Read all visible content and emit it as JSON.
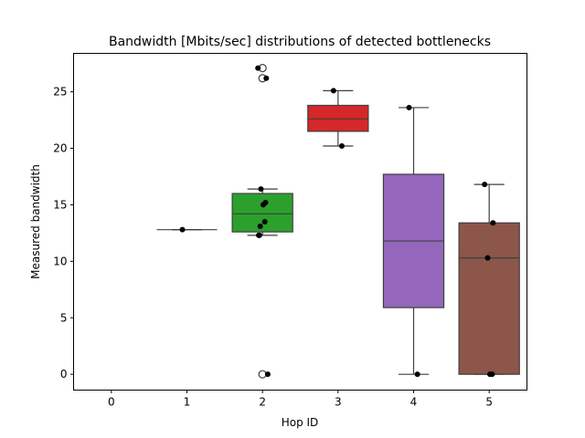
{
  "chart_data": {
    "type": "box",
    "title": "Bandwidth [Mbits/sec] distributions of detected bottlenecks",
    "xlabel": "Hop ID",
    "ylabel": "Measured bandwidth",
    "categories": [
      "0",
      "1",
      "2",
      "3",
      "4",
      "5"
    ],
    "ylim": [
      -1.4,
      28.4
    ],
    "yticks": [
      0,
      5,
      10,
      15,
      20,
      25
    ],
    "grid": false,
    "boxes": [
      {
        "category": "1",
        "color": "#ff7f0e",
        "q1": 12.8,
        "median": 12.8,
        "q3": 12.8,
        "whisker_low": 12.8,
        "whisker_high": 12.8,
        "outliers": []
      },
      {
        "category": "2",
        "color": "#2ca02c",
        "q1": 12.6,
        "median": 14.2,
        "q3": 16.0,
        "whisker_low": 12.3,
        "whisker_high": 16.4,
        "outliers": [
          27.1,
          26.2,
          0.0
        ]
      },
      {
        "category": "3",
        "color": "#d62728",
        "q1": 21.5,
        "median": 22.6,
        "q3": 23.8,
        "whisker_low": 20.2,
        "whisker_high": 25.1,
        "outliers": []
      },
      {
        "category": "4",
        "color": "#9467bd",
        "q1": 5.9,
        "median": 11.8,
        "q3": 17.7,
        "whisker_low": 0.0,
        "whisker_high": 23.6,
        "outliers": []
      },
      {
        "category": "5",
        "color": "#8c564b",
        "q1": 0.0,
        "median": 10.3,
        "q3": 13.4,
        "whisker_low": 0.0,
        "whisker_high": 16.8,
        "outliers": []
      }
    ],
    "points": [
      {
        "category": "1",
        "values": [
          12.8
        ]
      },
      {
        "category": "2",
        "values": [
          27.1,
          26.2,
          16.4,
          15.2,
          15.0,
          13.5,
          13.1,
          12.3,
          12.3,
          0.0
        ]
      },
      {
        "category": "3",
        "values": [
          25.1,
          20.2
        ]
      },
      {
        "category": "4",
        "values": [
          23.6,
          0.0
        ]
      },
      {
        "category": "5",
        "values": [
          16.8,
          13.4,
          10.3,
          0.0,
          0.0
        ]
      }
    ]
  }
}
